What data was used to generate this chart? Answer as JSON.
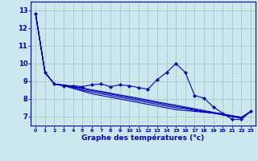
{
  "title": "Graphe des températures (°c)",
  "background_color": "#cce8ef",
  "grid_color": "#aacccc",
  "line_color": "#0000bb",
  "marker_color": "#0000bb",
  "xlim": [
    -0.5,
    23.5
  ],
  "ylim": [
    6.5,
    13.5
  ],
  "yticks": [
    7,
    8,
    9,
    10,
    11,
    12,
    13
  ],
  "xticks": [
    0,
    1,
    2,
    3,
    4,
    5,
    6,
    7,
    8,
    9,
    10,
    11,
    12,
    13,
    14,
    15,
    16,
    17,
    18,
    19,
    20,
    21,
    22,
    23
  ],
  "series_main": [
    12.8,
    9.5,
    8.85,
    8.75,
    8.75,
    8.7,
    8.8,
    8.85,
    8.7,
    8.8,
    8.75,
    8.65,
    8.55,
    9.1,
    9.5,
    10.0,
    9.5,
    8.2,
    8.05,
    7.55,
    7.2,
    6.85,
    6.85,
    7.3
  ],
  "series_trend1": [
    12.8,
    9.5,
    8.85,
    8.75,
    8.6,
    8.45,
    8.3,
    8.2,
    8.1,
    8.0,
    7.9,
    7.8,
    7.7,
    7.6,
    7.5,
    7.4,
    7.35,
    7.3,
    7.25,
    7.2,
    7.15,
    7.05,
    6.95,
    7.3
  ],
  "series_trend2": [
    12.8,
    9.5,
    8.85,
    8.75,
    8.65,
    8.5,
    8.4,
    8.3,
    8.2,
    8.1,
    8.0,
    7.9,
    7.8,
    7.7,
    7.6,
    7.5,
    7.45,
    7.35,
    7.28,
    7.2,
    7.1,
    7.0,
    6.92,
    7.3
  ],
  "series_trend3": [
    12.8,
    9.5,
    8.85,
    8.78,
    8.7,
    8.58,
    8.48,
    8.38,
    8.28,
    8.18,
    8.08,
    7.98,
    7.88,
    7.78,
    7.68,
    7.58,
    7.5,
    7.4,
    7.3,
    7.22,
    7.12,
    7.02,
    6.93,
    7.3
  ],
  "series_trend4": [
    12.8,
    9.5,
    8.85,
    8.8,
    8.72,
    8.62,
    8.52,
    8.43,
    8.33,
    8.23,
    8.14,
    8.04,
    7.94,
    7.84,
    7.74,
    7.65,
    7.55,
    7.45,
    7.35,
    7.25,
    7.16,
    7.06,
    6.97,
    7.3
  ]
}
